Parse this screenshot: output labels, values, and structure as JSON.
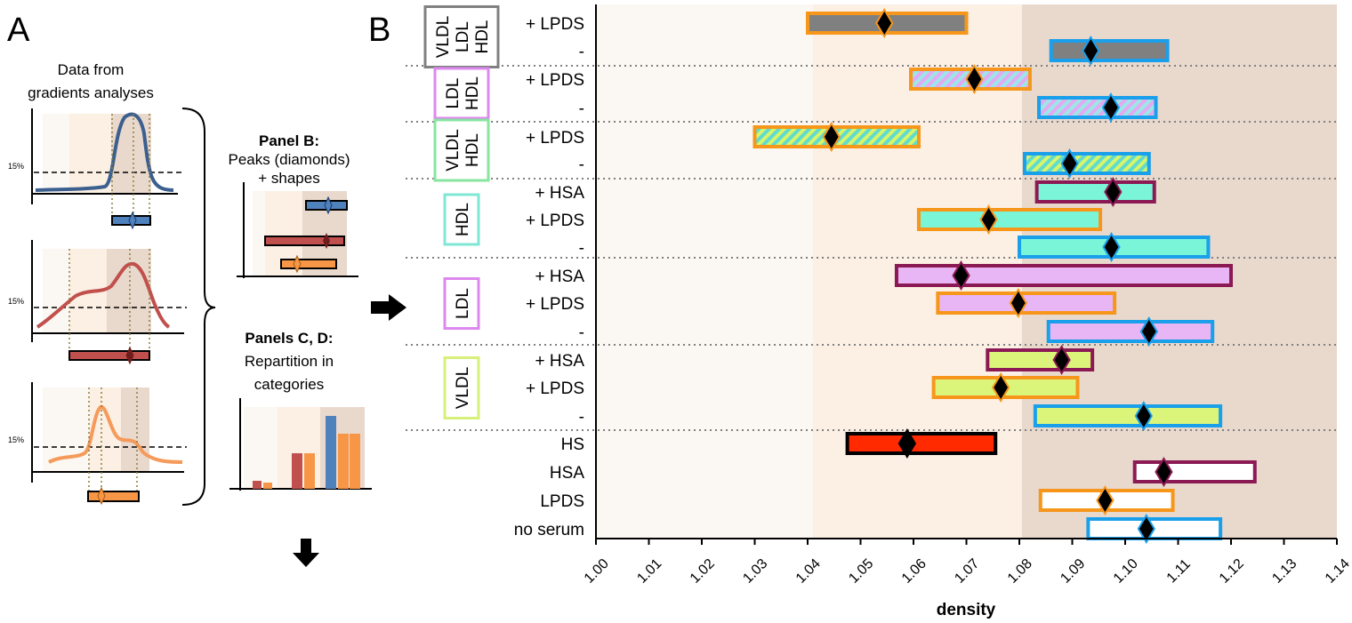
{
  "panels": {
    "a": "A",
    "b": "B"
  },
  "schematic": {
    "title_line1": "Data from",
    "title_line2": "gradients analyses",
    "threshold_label": "15%",
    "panel_b_title": "Panel B:",
    "panel_b_line1": "Peaks (diamonds)",
    "panel_b_line2": "+ shapes",
    "panel_cd_title": "Panels C, D:",
    "panel_cd_line1": "Repartition in",
    "panel_cd_line2": "categories"
  },
  "colors": {
    "zone_light": "#fbf7f2",
    "zone_mid": "#fcefe3",
    "zone_dark": "#e9d8cc",
    "blue": "#1a9fea",
    "orange": "#f6961b",
    "purple": "#8b1a54",
    "black": "#000000",
    "grey": "#808080",
    "curve_blue": "#3b5f8e",
    "curve_red": "#c1504d",
    "curve_orange": "#f59a5a"
  },
  "chart_data": {
    "type": "range-bar",
    "xlabel": "density",
    "xlim": [
      1.0,
      1.14
    ],
    "xticks": [
      "1.00",
      "1.01",
      "1.02",
      "1.03",
      "1.04",
      "1.05",
      "1.06",
      "1.07",
      "1.08",
      "1.09",
      "1.10",
      "1.11",
      "1.12",
      "1.13",
      "1.14"
    ],
    "zones": [
      {
        "from": 1.0,
        "to": 1.041,
        "color": "light"
      },
      {
        "from": 1.041,
        "to": 1.0805,
        "color": "mid"
      },
      {
        "from": 1.0805,
        "to": 1.14,
        "color": "dark"
      }
    ],
    "groups": [
      {
        "label_lines": [
          "VLDL",
          "LDL",
          "HDL"
        ],
        "box_color": "#808080",
        "rows": [
          {
            "label": "+ LPDS",
            "min": 1.04,
            "max": 1.07,
            "peak": 1.0545,
            "fill": "#808080",
            "edge": "#f6961b",
            "pattern": "solid"
          },
          {
            "label": "-",
            "min": 1.086,
            "max": 1.108,
            "peak": 1.0935,
            "fill": "#808080",
            "edge": "#1a9fea",
            "pattern": "solid"
          }
        ]
      },
      {
        "label_lines": [
          "LDL",
          "HDL"
        ],
        "box_color": "#dd88ee",
        "rows": [
          {
            "label": "+ LPDS",
            "min": 1.0595,
            "max": 1.082,
            "peak": 1.0715,
            "fill": "#e3a9f2",
            "stripe": "#9be7e8",
            "edge": "#f6961b",
            "pattern": "hatch"
          },
          {
            "label": "-",
            "min": 1.0837,
            "max": 1.1058,
            "peak": 1.0973,
            "fill": "#e3a9f2",
            "stripe": "#9be7e8",
            "edge": "#1a9fea",
            "pattern": "hatch"
          }
        ]
      },
      {
        "label_lines": [
          "VLDL",
          "HDL"
        ],
        "box_color": "#88e6a0",
        "rows": [
          {
            "label": "+ LPDS",
            "min": 1.03,
            "max": 1.061,
            "peak": 1.0445,
            "fill": "#d6f56a",
            "stripe": "#5fdbcf",
            "edge": "#f6961b",
            "pattern": "hatch"
          },
          {
            "label": "-",
            "min": 1.081,
            "max": 1.1045,
            "peak": 1.0895,
            "fill": "#d6f56a",
            "stripe": "#5fdbcf",
            "edge": "#1a9fea",
            "pattern": "hatch"
          }
        ]
      },
      {
        "label_lines": [
          "HDL"
        ],
        "box_color": "#7fe7d4",
        "rows": [
          {
            "label": "+ HSA",
            "min": 1.0833,
            "max": 1.1055,
            "peak": 1.0977,
            "fill": "#7af5d8",
            "edge": "#8b1a54",
            "pattern": "solid"
          },
          {
            "label": "+ LPDS",
            "min": 1.061,
            "max": 1.0953,
            "peak": 1.0742,
            "fill": "#7af5d8",
            "edge": "#f6961b",
            "pattern": "solid"
          },
          {
            "label": "-",
            "min": 1.08,
            "max": 1.1157,
            "peak": 1.0974,
            "fill": "#7af5d8",
            "edge": "#1a9fea",
            "pattern": "solid"
          }
        ]
      },
      {
        "label_lines": [
          "LDL"
        ],
        "box_color": "#dd88ee",
        "rows": [
          {
            "label": "+ HSA",
            "min": 1.0568,
            "max": 1.12,
            "peak": 1.069,
            "fill": "#e8b5f5",
            "edge": "#8b1a54",
            "pattern": "solid"
          },
          {
            "label": "+ LPDS",
            "min": 1.0646,
            "max": 1.098,
            "peak": 1.0798,
            "fill": "#e8b5f5",
            "edge": "#f6961b",
            "pattern": "solid"
          },
          {
            "label": "-",
            "min": 1.0855,
            "max": 1.1165,
            "peak": 1.1045,
            "fill": "#e8b5f5",
            "edge": "#1a9fea",
            "pattern": "solid"
          }
        ]
      },
      {
        "label_lines": [
          "VLDL"
        ],
        "box_color": "#d6f07a",
        "rows": [
          {
            "label": "+ HSA",
            "min": 1.074,
            "max": 1.0938,
            "peak": 1.088,
            "fill": "#dbf57a",
            "edge": "#8b1a54",
            "pattern": "solid"
          },
          {
            "label": "+ LPDS",
            "min": 1.0638,
            "max": 1.091,
            "peak": 1.0765,
            "fill": "#dbf57a",
            "edge": "#f6961b",
            "pattern": "solid"
          },
          {
            "label": "-",
            "min": 1.083,
            "max": 1.118,
            "peak": 1.1035,
            "fill": "#dbf57a",
            "edge": "#1a9fea",
            "pattern": "solid"
          }
        ]
      },
      {
        "label_lines": [],
        "box_color": "",
        "rows": [
          {
            "label": "HS",
            "min": 1.0475,
            "max": 1.0755,
            "peak": 1.0588,
            "fill": "#ff2a00",
            "edge": "#000000",
            "pattern": "solid"
          },
          {
            "label": "HSA",
            "min": 1.1018,
            "max": 1.1245,
            "peak": 1.1073,
            "fill": "#ffffff",
            "edge": "#8b1a54",
            "pattern": "solid"
          },
          {
            "label": "LPDS",
            "min": 1.084,
            "max": 1.109,
            "peak": 1.0962,
            "fill": "#ffffff",
            "edge": "#f6961b",
            "pattern": "solid"
          },
          {
            "label": "no serum",
            "min": 1.093,
            "max": 1.118,
            "peak": 1.104,
            "fill": "#ffffff",
            "edge": "#1a9fea",
            "pattern": "solid"
          }
        ]
      }
    ]
  }
}
